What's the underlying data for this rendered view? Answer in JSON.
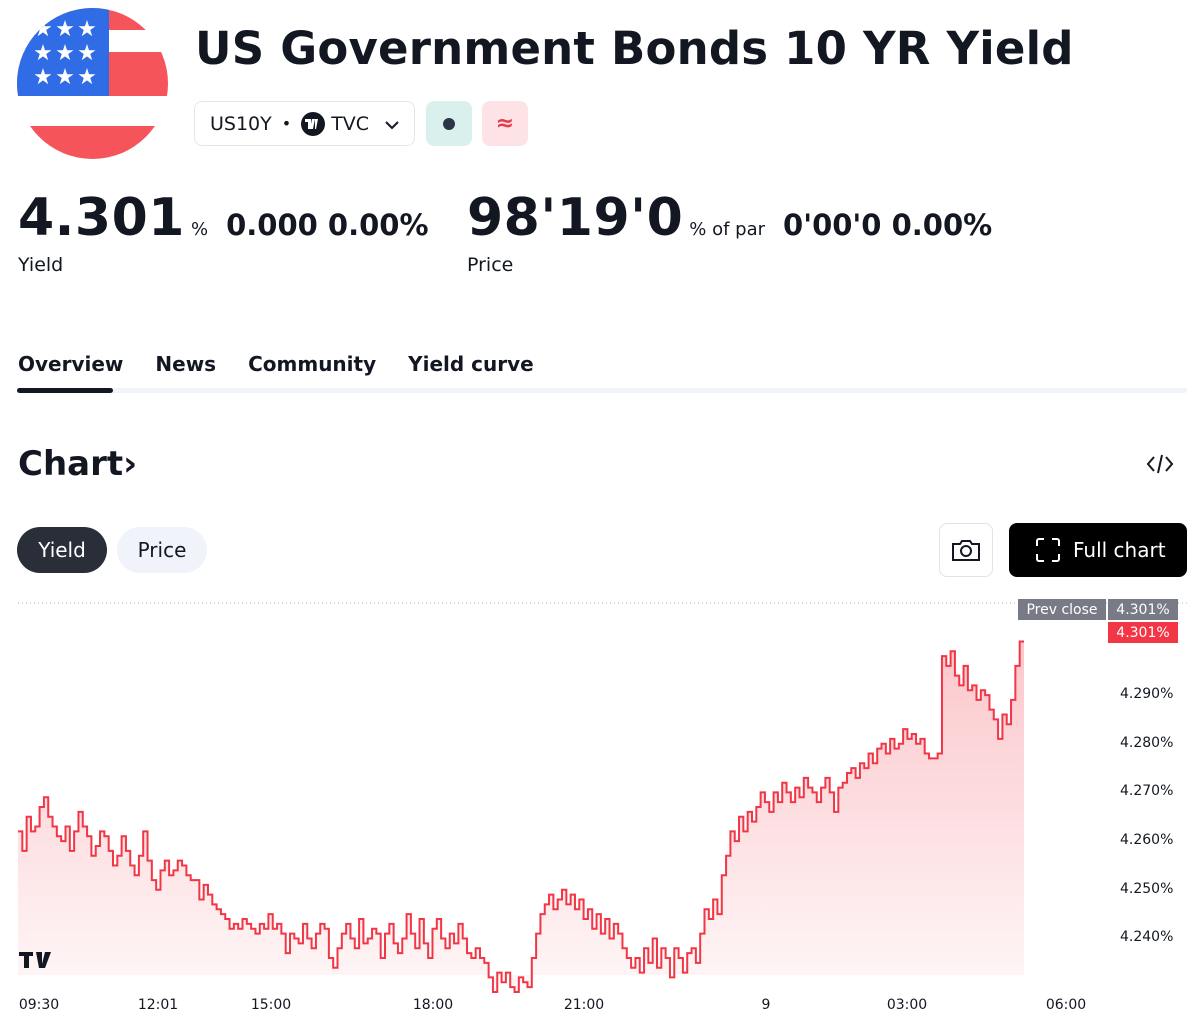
{
  "header": {
    "title": "US Government Bonds 10 YR Yield",
    "symbol": "US10Y",
    "separator": "•",
    "exchange": "TVC",
    "approx_symbol": "≈"
  },
  "yield_quote": {
    "value": "4.301",
    "unit": "%",
    "change": "0.000 0.00%",
    "label": "Yield"
  },
  "price_quote": {
    "value": "98'19'0",
    "unit": "% of par",
    "change": "0'00'0 0.00%",
    "label": "Price"
  },
  "tabs": [
    {
      "label": "Overview",
      "active": true
    },
    {
      "label": "News"
    },
    {
      "label": "Community"
    },
    {
      "label": "Yield curve"
    }
  ],
  "chart_section": {
    "heading": "Chart",
    "chevron": "›",
    "embed_icon": "code-embed-icon",
    "toggle_yield": "Yield",
    "toggle_price": "Price",
    "camera_icon": "camera-icon",
    "full_chart_label": "Full chart",
    "prev_close_label": "Prev close"
  },
  "colors": {
    "line": "#f23645",
    "fill": "#f23645",
    "dark": "#131722",
    "grey_tag": "#787b86"
  },
  "chart_data": {
    "type": "area",
    "series": [
      {
        "values": [
          4.262,
          4.258,
          4.265,
          4.262,
          4.263,
          4.267,
          4.269,
          4.265,
          4.263,
          4.261,
          4.26,
          4.263,
          4.258,
          4.262,
          4.266,
          4.263,
          4.261,
          4.257,
          4.259,
          4.262,
          4.261,
          4.258,
          4.255,
          4.257,
          4.261,
          4.258,
          4.255,
          4.253,
          4.257,
          4.262,
          4.256,
          4.252,
          4.25,
          4.254,
          4.256,
          4.253,
          4.254,
          4.256,
          4.255,
          4.253,
          4.252,
          4.252,
          4.248,
          4.251,
          4.249,
          4.247,
          4.246,
          4.245,
          4.244,
          4.242,
          4.243,
          4.242,
          4.244,
          4.243,
          4.242,
          4.241,
          4.243,
          4.242,
          4.245,
          4.242,
          4.243,
          4.241,
          4.237,
          4.241,
          4.24,
          4.239,
          4.243,
          4.24,
          4.238,
          4.241,
          4.243,
          4.242,
          4.236,
          4.234,
          4.238,
          4.241,
          4.243,
          4.24,
          4.238,
          4.244,
          4.239,
          4.24,
          4.242,
          4.241,
          4.236,
          4.241,
          4.243,
          4.239,
          4.237,
          4.24,
          4.245,
          4.241,
          4.238,
          4.244,
          4.239,
          4.236,
          4.242,
          4.244,
          4.24,
          4.238,
          4.241,
          4.239,
          4.243,
          4.24,
          4.237,
          4.236,
          4.238,
          4.236,
          4.235,
          4.232,
          4.229,
          4.233,
          4.231,
          4.233,
          4.23,
          4.229,
          4.232,
          4.231,
          4.23,
          4.236,
          4.241,
          4.245,
          4.247,
          4.249,
          4.246,
          4.248,
          4.25,
          4.247,
          4.249,
          4.246,
          4.248,
          4.244,
          4.246,
          4.242,
          4.245,
          4.241,
          4.244,
          4.24,
          4.243,
          4.241,
          4.238,
          4.236,
          4.234,
          4.236,
          4.233,
          4.238,
          4.235,
          4.24,
          4.234,
          4.238,
          4.236,
          4.232,
          4.238,
          4.236,
          4.233,
          4.237,
          4.238,
          4.235,
          4.241,
          4.246,
          4.244,
          4.248,
          4.245,
          4.253,
          4.257,
          4.262,
          4.26,
          4.265,
          4.262,
          4.266,
          4.264,
          4.267,
          4.27,
          4.268,
          4.266,
          4.27,
          4.268,
          4.272,
          4.27,
          4.268,
          4.271,
          4.269,
          4.273,
          4.271,
          4.27,
          4.268,
          4.271,
          4.273,
          4.27,
          4.266,
          4.271,
          4.272,
          4.274,
          4.275,
          4.273,
          4.276,
          4.275,
          4.278,
          4.276,
          4.279,
          4.28,
          4.278,
          4.281,
          4.279,
          4.28,
          4.283,
          4.281,
          4.282,
          4.28,
          4.281,
          4.278,
          4.277,
          4.277,
          4.278,
          4.298,
          4.296,
          4.299,
          4.294,
          4.292,
          4.296,
          4.291,
          4.292,
          4.289,
          4.291,
          4.29,
          4.287,
          4.285,
          4.281,
          4.286,
          4.284,
          4.289,
          4.296,
          4.301,
          4.301
        ]
      }
    ],
    "x_ticks": [
      "09:30",
      "12:01",
      "15:00",
      "18:00",
      "21:00",
      "9",
      "03:00",
      "06:00"
    ],
    "y_ticks": [
      "4.290%",
      "4.280%",
      "4.270%",
      "4.260%",
      "4.250%",
      "4.240%"
    ],
    "prev_close": "4.301%",
    "last_value": "4.301%",
    "ylim": [
      4.2325,
      4.3085
    ],
    "grid": false
  }
}
